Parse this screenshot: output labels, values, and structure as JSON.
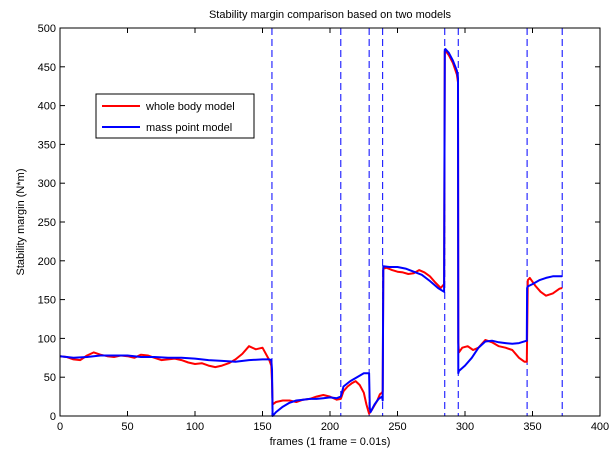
{
  "chart_data": {
    "type": "line",
    "title": "Stability margin comparison based on two models",
    "xlabel": "frames (1 frame = 0.01s)",
    "ylabel": "Stability margin (N*m)",
    "xlim": [
      0,
      400
    ],
    "ylim": [
      0,
      500
    ],
    "xticks": [
      0,
      50,
      100,
      150,
      200,
      250,
      300,
      350,
      400
    ],
    "yticks": [
      0,
      50,
      100,
      150,
      200,
      250,
      300,
      350,
      400,
      450,
      500
    ],
    "grid": false,
    "legend_position": "upper-left",
    "vlines": [
      0,
      157,
      208,
      229,
      239,
      285,
      295,
      346,
      372
    ],
    "series": [
      {
        "name": "whole body model",
        "color": "#ff0000",
        "x": [
          0,
          5,
          10,
          15,
          20,
          25,
          30,
          35,
          40,
          45,
          50,
          55,
          60,
          65,
          70,
          75,
          80,
          85,
          90,
          95,
          100,
          105,
          110,
          115,
          120,
          125,
          130,
          135,
          140,
          145,
          150,
          155,
          156.5,
          157,
          157.5,
          160,
          165,
          170,
          175,
          180,
          185,
          190,
          195,
          200,
          205,
          208,
          210,
          213,
          216,
          219,
          222,
          225,
          227,
          229,
          231,
          233,
          235,
          237,
          238.5,
          239,
          239.5,
          242,
          246,
          250,
          254,
          258,
          262,
          266,
          270,
          274,
          278,
          282,
          284.5,
          285,
          285.5,
          288,
          291,
          294,
          294.8,
          295,
          295.5,
          298,
          302,
          306,
          310,
          315,
          320,
          325,
          330,
          335,
          340,
          344,
          345.8,
          346,
          346.5,
          348,
          352,
          356,
          360,
          365,
          370,
          372
        ],
        "y": [
          77,
          76,
          73,
          72,
          78,
          82,
          79,
          77,
          76,
          78,
          77,
          75,
          79,
          78,
          75,
          72,
          73,
          74,
          72,
          69,
          67,
          68,
          65,
          63,
          65,
          68,
          73,
          80,
          90,
          86,
          88,
          72,
          65,
          45,
          15,
          18,
          20,
          20,
          18,
          21,
          22,
          25,
          27,
          25,
          21,
          22,
          32,
          38,
          42,
          45,
          40,
          30,
          15,
          3,
          8,
          14,
          20,
          28,
          30,
          32,
          190,
          191,
          188,
          186,
          185,
          183,
          184,
          188,
          185,
          180,
          172,
          165,
          170,
          470,
          471,
          465,
          455,
          440,
          430,
          95,
          82,
          88,
          90,
          85,
          88,
          98,
          95,
          90,
          88,
          85,
          75,
          70,
          70,
          100,
          175,
          178,
          168,
          160,
          155,
          158,
          164,
          165
        ]
      },
      {
        "name": "mass point model",
        "color": "#0000ff",
        "x": [
          0,
          10,
          20,
          30,
          40,
          50,
          60,
          70,
          80,
          90,
          100,
          110,
          120,
          130,
          140,
          150,
          155,
          156.5,
          157,
          157.5,
          160,
          165,
          170,
          175,
          180,
          185,
          190,
          195,
          200,
          205,
          208,
          210,
          215,
          220,
          225,
          229,
          229.5,
          230,
          233,
          236,
          238.5,
          239,
          239.5,
          244,
          250,
          256,
          262,
          268,
          274,
          280,
          284.5,
          285,
          285.5,
          288,
          291,
          294,
          294.8,
          295,
          295.5,
          300,
          305,
          310,
          315,
          320,
          325,
          330,
          335,
          340,
          345.8,
          346,
          346.5,
          350,
          355,
          360,
          365,
          370,
          372
        ],
        "y": [
          77,
          75,
          76,
          78,
          78,
          78,
          76,
          76,
          75,
          75,
          74,
          72,
          71,
          70,
          72,
          73,
          73,
          72,
          60,
          0,
          5,
          12,
          17,
          20,
          21,
          22,
          22,
          23,
          24,
          23,
          25,
          38,
          45,
          50,
          55,
          55,
          10,
          5,
          15,
          22,
          25,
          20,
          193,
          192,
          192,
          190,
          186,
          182,
          174,
          165,
          160,
          472,
          473,
          468,
          458,
          445,
          435,
          55,
          58,
          65,
          75,
          88,
          96,
          97,
          95,
          94,
          93,
          94,
          97,
          165,
          167,
          170,
          175,
          178,
          180,
          180,
          180
        ]
      }
    ]
  }
}
